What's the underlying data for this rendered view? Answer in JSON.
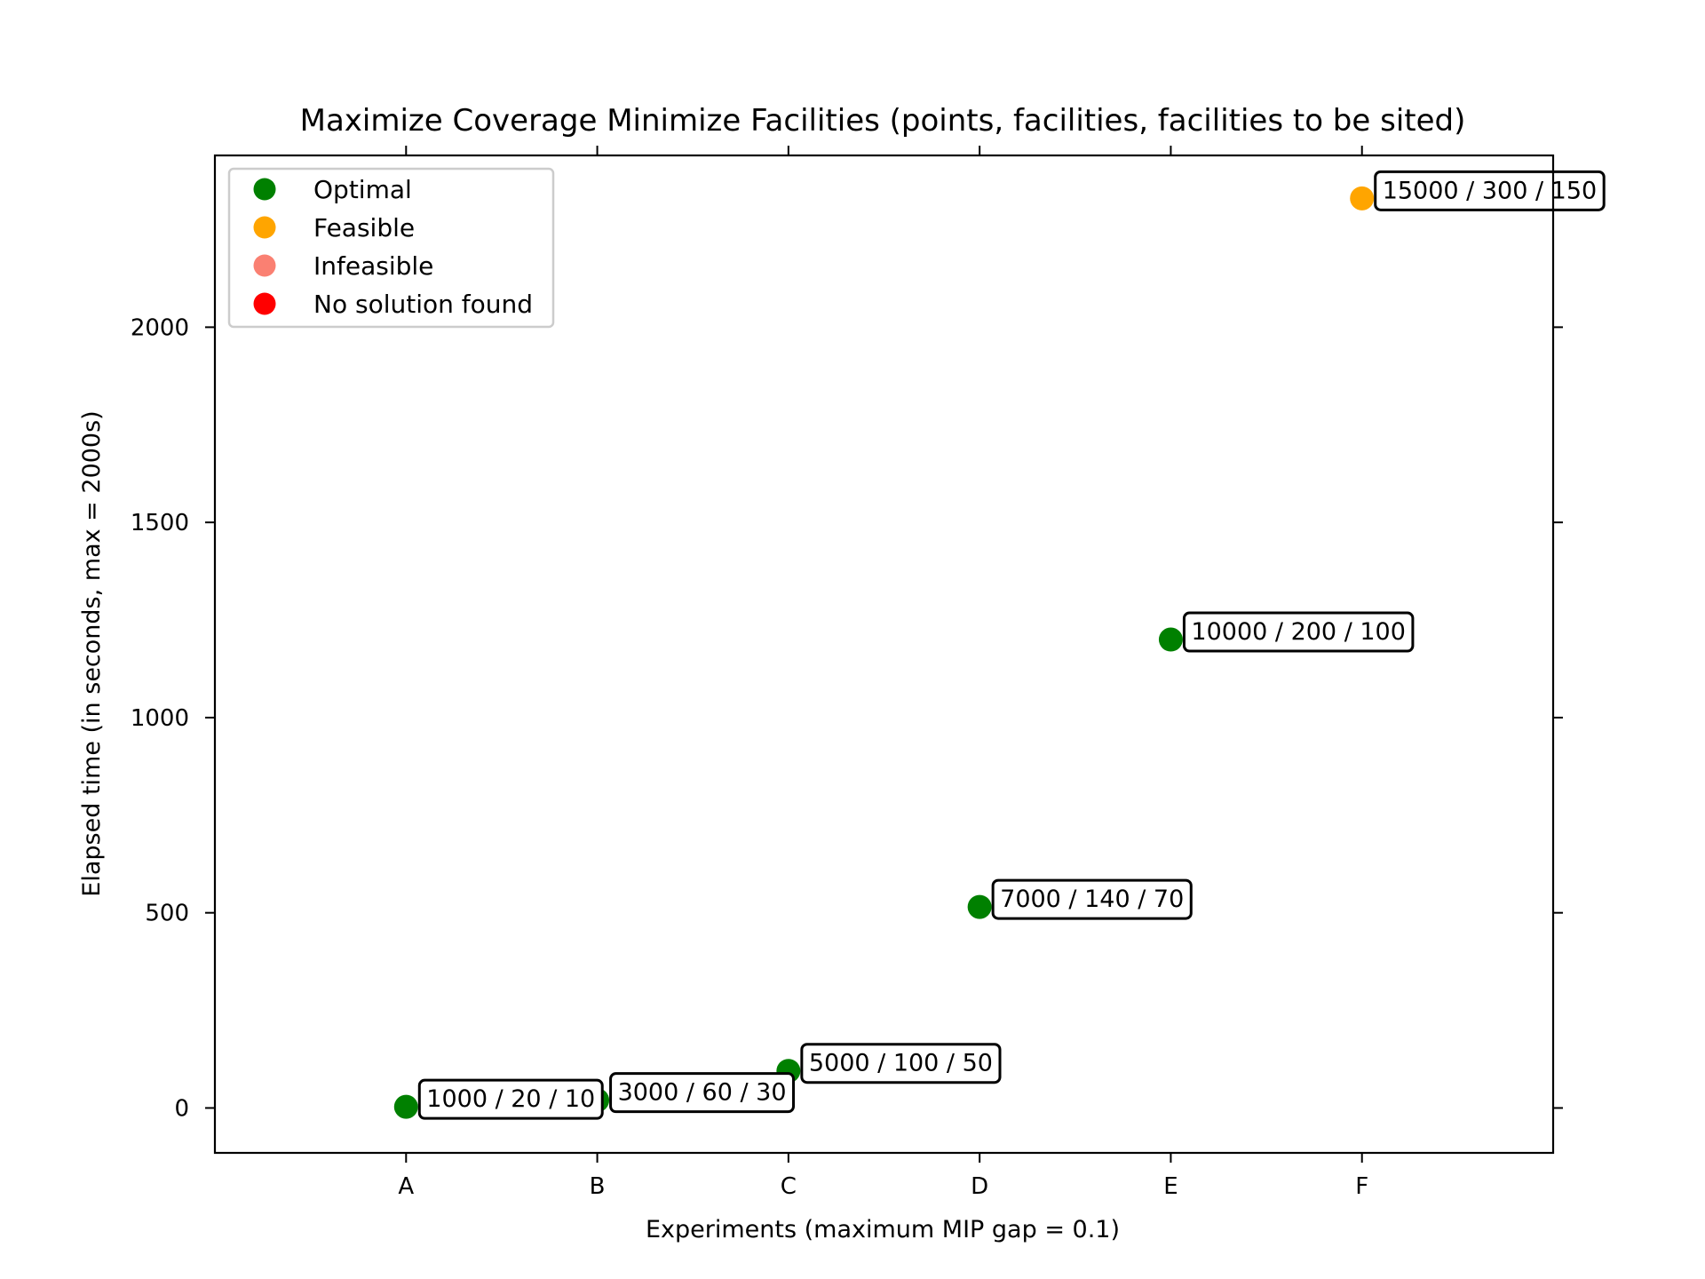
{
  "chart_data": {
    "type": "scatter",
    "title": "Maximize Coverage Minimize Facilities (points, facilities, facilities to be sited)",
    "xlabel": "Experiments (maximum MIP gap = 0.1)",
    "ylabel": "Elapsed time (in seconds, max = 2000s)",
    "categories": [
      "A",
      "B",
      "C",
      "D",
      "E",
      "F"
    ],
    "xlim": [
      -1,
      6
    ],
    "ylim": [
      -115,
      2440
    ],
    "yticks": [
      0,
      500,
      1000,
      1500,
      2000
    ],
    "ytick_labels": [
      "0",
      "500",
      "1000",
      "1500",
      "2000"
    ],
    "grid": false,
    "legend": {
      "placement": "top-left",
      "entries": [
        {
          "label": "Optimal",
          "color": "#008000"
        },
        {
          "label": "Feasible",
          "color": "#FFA500"
        },
        {
          "label": "Infeasible",
          "color": "#FA8072"
        },
        {
          "label": "No solution found",
          "color": "#FF0000"
        }
      ]
    },
    "points": [
      {
        "x": "A",
        "y": 3,
        "status": "Optimal",
        "label": "1000 / 20 / 10"
      },
      {
        "x": "B",
        "y": 20,
        "status": "Optimal",
        "label": "3000 / 60 / 30"
      },
      {
        "x": "C",
        "y": 95,
        "status": "Optimal",
        "label": "5000 / 100 / 50"
      },
      {
        "x": "D",
        "y": 515,
        "status": "Optimal",
        "label": "7000 / 140 / 70"
      },
      {
        "x": "E",
        "y": 1200,
        "status": "Optimal",
        "label": "10000 / 200 / 100"
      },
      {
        "x": "F",
        "y": 2330,
        "status": "Feasible",
        "label": "15000 / 300 / 150"
      }
    ]
  }
}
